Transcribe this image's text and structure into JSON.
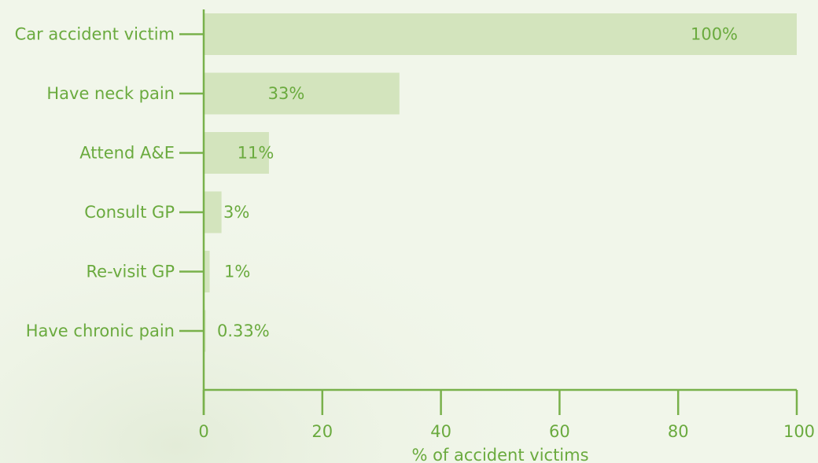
{
  "colors": {
    "axis": "#79b14b",
    "bar": "#d3e4bd",
    "text": "#6aaa3e",
    "background": "#f1f6ea"
  },
  "chart_data": {
    "type": "bar",
    "orientation": "horizontal",
    "categories": [
      "Car accident victim",
      "Have neck pain",
      "Attend A&E",
      "Consult GP",
      "Re-visit GP",
      "Have chronic pain"
    ],
    "values": [
      100,
      33,
      11,
      3,
      1,
      0.33
    ],
    "data_labels": [
      "100%",
      "33%",
      "11%",
      "3%",
      "1%",
      "0.33%"
    ],
    "xlabel": "% of accident victims",
    "xlim": [
      0,
      100
    ],
    "xticks": [
      0,
      20,
      40,
      60,
      80,
      100
    ],
    "xtick_labels": [
      "0",
      "20",
      "40",
      "60",
      "80",
      "100"
    ],
    "grid": false,
    "legend": "none"
  }
}
